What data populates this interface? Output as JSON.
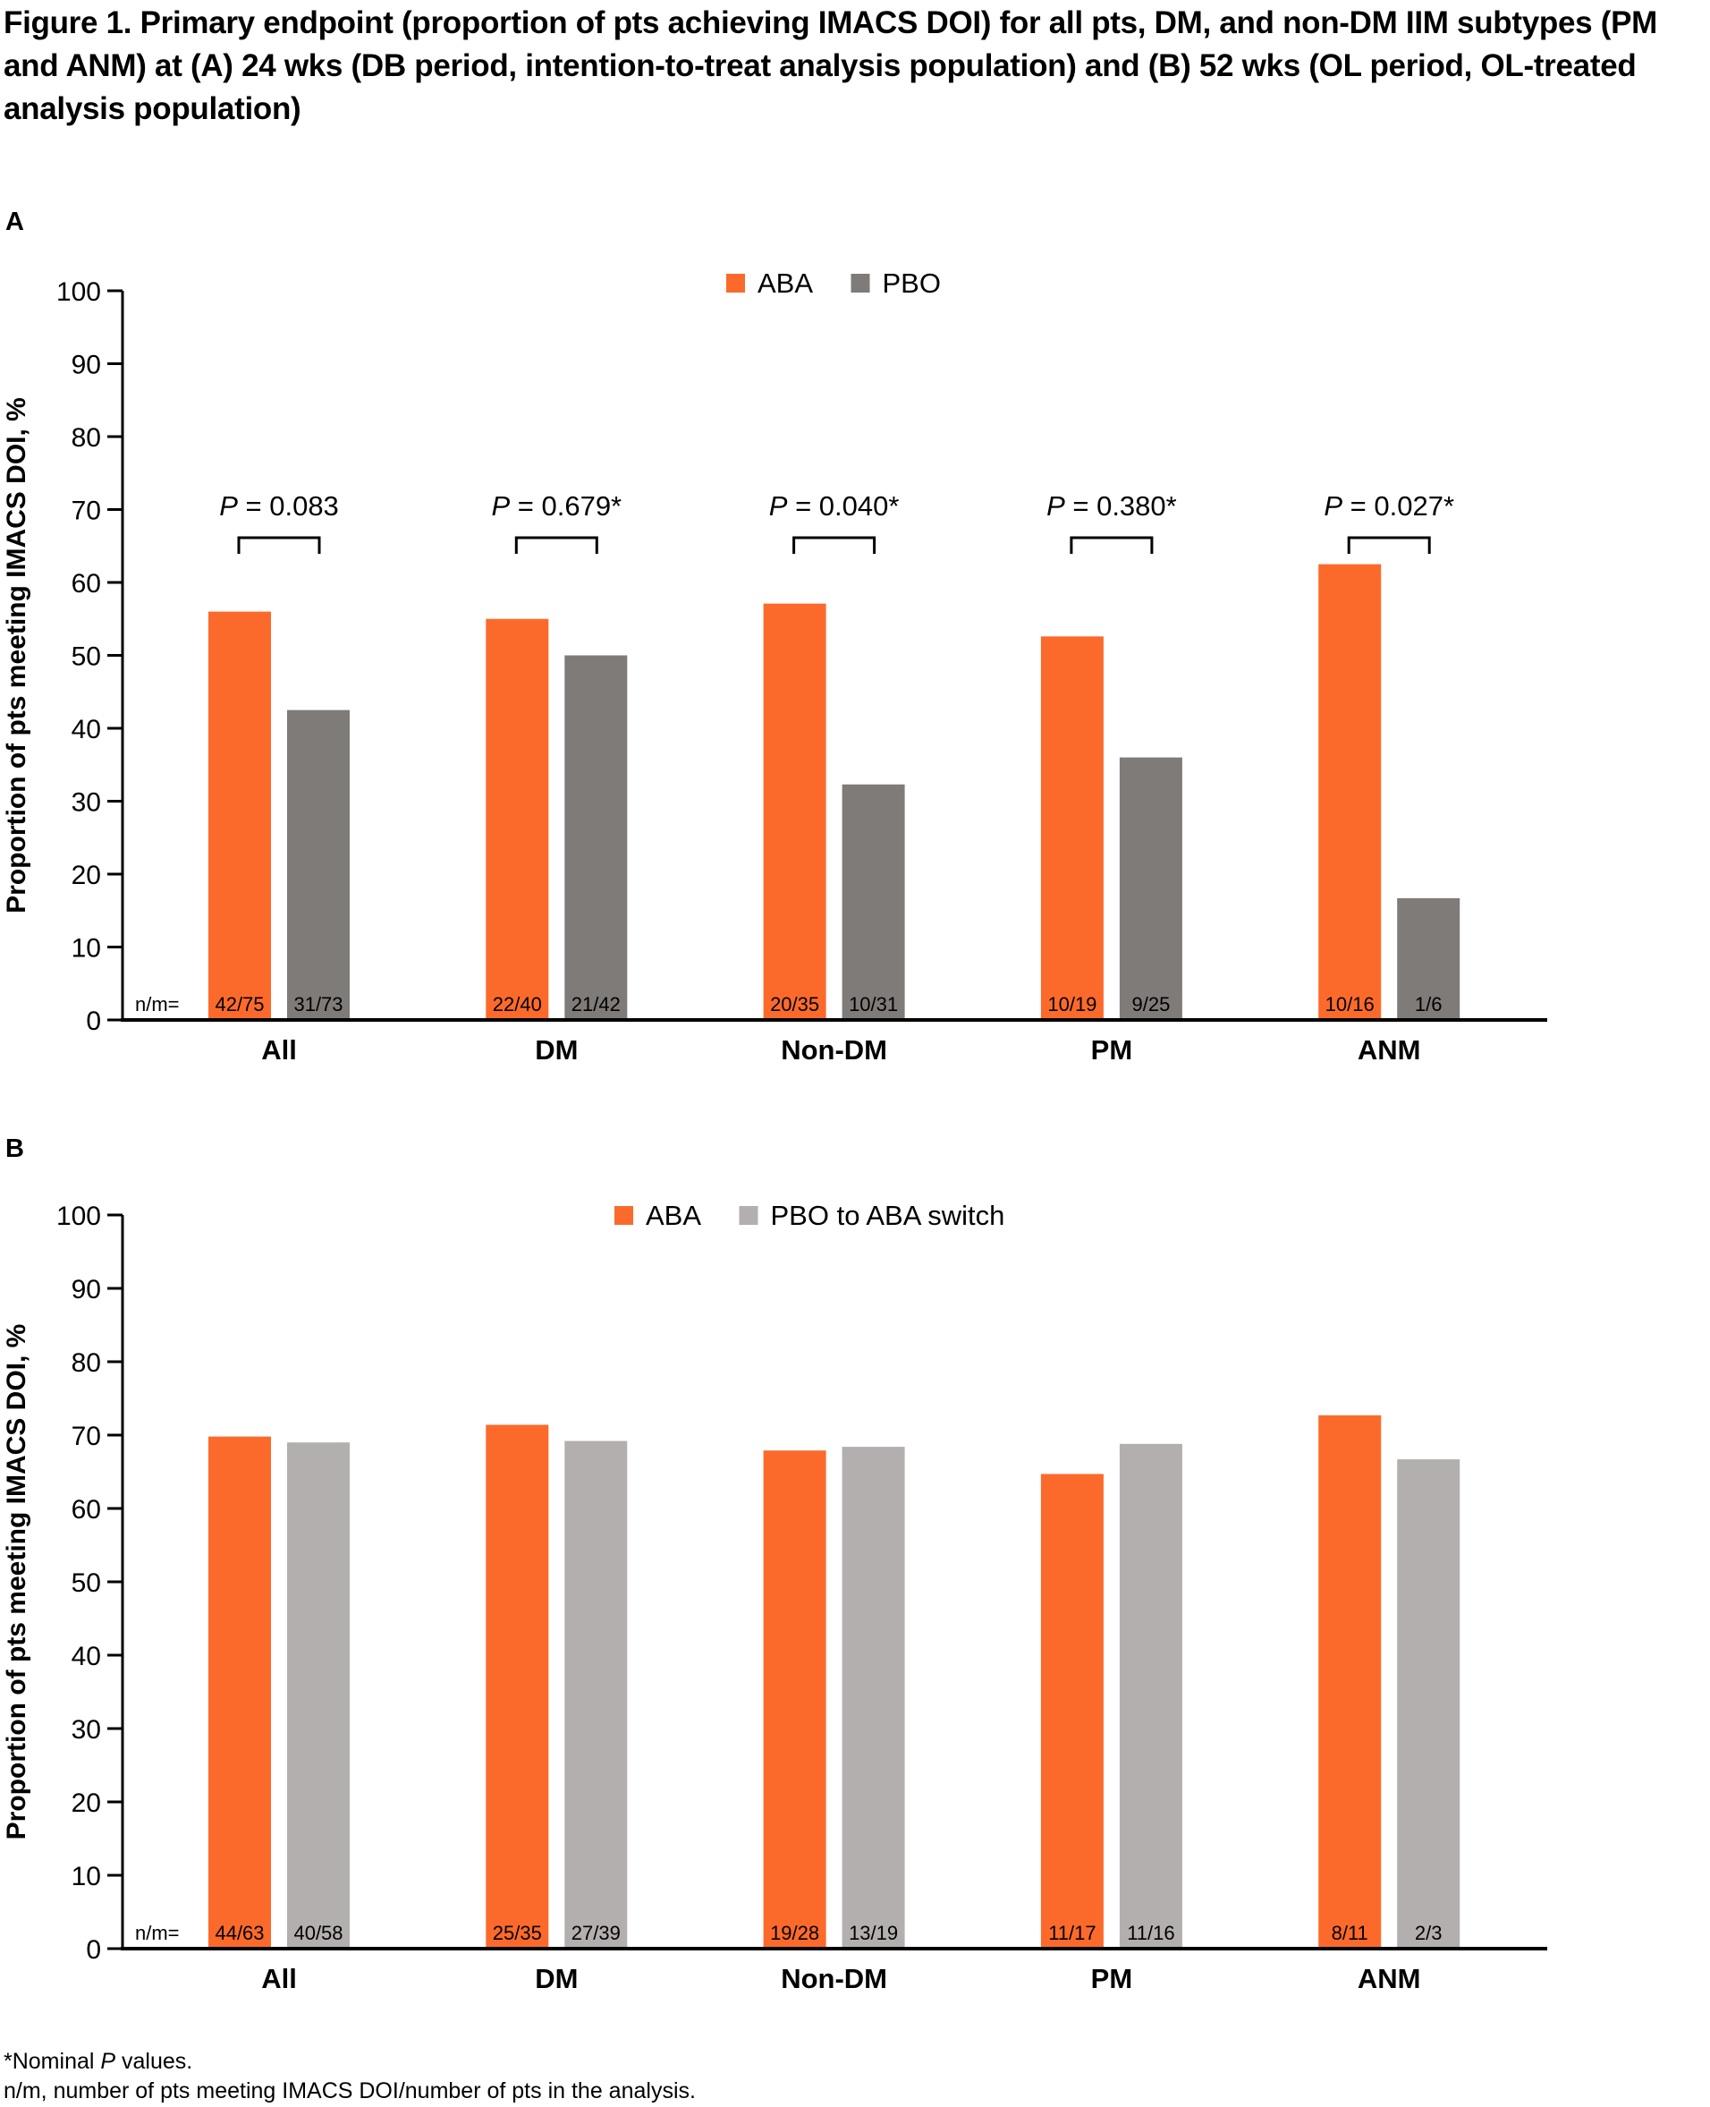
{
  "figure": {
    "title": "Figure 1. Primary endpoint (proportion of pts achieving IMACS DOI) for all pts, DM, and non-DM IIM subtypes (PM and ANM) at (A) 24 wks (DB period, intention-to-treat analysis population) and (B) 52 wks (OL period, OL-treated analysis population)",
    "footnote_1_prefix": "*Nominal ",
    "footnote_1_italic": "P",
    "footnote_1_suffix": " values.",
    "footnote_2": "n/m, number of pts meeting IMACS DOI/number of pts in the analysis."
  },
  "colors": {
    "aba": "#FC6A2B",
    "pbo": "#7F7B79",
    "switch": "#B3AFAE",
    "axis": "#000000"
  },
  "chart_data": [
    {
      "panel": "A",
      "type": "bar",
      "title": "",
      "xlabel": "",
      "ylabel": "Proportion of pts meeting IMACS DOI, %",
      "ylim": [
        0,
        100
      ],
      "yticks": [
        0,
        10,
        20,
        30,
        40,
        50,
        60,
        70,
        80,
        90,
        100
      ],
      "grid": false,
      "legend_position": "top-center",
      "categories": [
        "All",
        "DM",
        "Non-DM",
        "PM",
        "ANM"
      ],
      "nm_prefix": "n/m=",
      "series": [
        {
          "name": "ABA",
          "color_key": "aba",
          "values": [
            56.0,
            55.0,
            57.1,
            52.6,
            62.5
          ],
          "nm": [
            "42/75",
            "22/40",
            "20/35",
            "10/19",
            "10/16"
          ]
        },
        {
          "name": "PBO",
          "color_key": "pbo",
          "values": [
            42.5,
            50.0,
            32.3,
            36.0,
            16.7
          ],
          "nm": [
            "31/73",
            "21/42",
            "10/31",
            "9/25",
            "1/6"
          ]
        }
      ],
      "annotations": [
        {
          "category": "All",
          "p_label": "P",
          "p_text": " = 0.083"
        },
        {
          "category": "DM",
          "p_label": "P",
          "p_text": " = 0.679*"
        },
        {
          "category": "Non-DM",
          "p_label": "P",
          "p_text": " = 0.040*"
        },
        {
          "category": "PM",
          "p_label": "P",
          "p_text": " = 0.380*"
        },
        {
          "category": "ANM",
          "p_label": "P",
          "p_text": " = 0.027*"
        }
      ]
    },
    {
      "panel": "B",
      "type": "bar",
      "title": "",
      "xlabel": "",
      "ylabel": "Proportion of pts meeting IMACS DOI, %",
      "ylim": [
        0,
        100
      ],
      "yticks": [
        0,
        10,
        20,
        30,
        40,
        50,
        60,
        70,
        80,
        90,
        100
      ],
      "grid": false,
      "legend_position": "top-center",
      "categories": [
        "All",
        "DM",
        "Non-DM",
        "PM",
        "ANM"
      ],
      "nm_prefix": "n/m=",
      "series": [
        {
          "name": "ABA",
          "color_key": "aba",
          "values": [
            69.8,
            71.4,
            67.9,
            64.7,
            72.7
          ],
          "nm": [
            "44/63",
            "25/35",
            "19/28",
            "11/17",
            "8/11"
          ]
        },
        {
          "name": "PBO to ABA switch",
          "color_key": "switch",
          "values": [
            69.0,
            69.2,
            68.4,
            68.8,
            66.7
          ],
          "nm": [
            "40/58",
            "27/39",
            "13/19",
            "11/16",
            "2/3"
          ]
        }
      ],
      "annotations": []
    }
  ]
}
